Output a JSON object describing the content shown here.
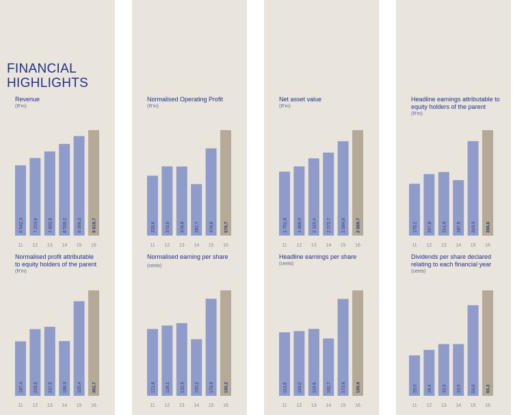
{
  "heading": [
    "FINANCIAL",
    "HIGHLIGHTS"
  ],
  "colors": {
    "panel": "#e9e5dd",
    "bar": "#8f9cc9",
    "highlight_bar": "#b4aa97",
    "title": "#1f2f8a",
    "value_label": "#2b3a7a",
    "tick_label": "#8a8a8a"
  },
  "chart_data": [
    {
      "type": "bar",
      "title": "Revenue",
      "unit": "(R'm)",
      "categories": [
        "11",
        "12",
        "13",
        "14",
        "15",
        "16"
      ],
      "values": [
        6542.3,
        7223.9,
        7832.9,
        8530.2,
        9266.3,
        9818.7
      ],
      "value_labels": [
        "6 542,3",
        "7 223,9",
        "7 832,9",
        "8 530,2",
        "9 266,3",
        "9 818,7"
      ],
      "highlight_index": 5
    },
    {
      "type": "bar",
      "title": "Normalised Operating Profit",
      "unit": "(R'm)",
      "categories": [
        "11",
        "12",
        "13",
        "14",
        "15",
        "16"
      ],
      "values": [
        328.6,
        379.9,
        378.9,
        282.7,
        478.6,
        578.7
      ],
      "value_labels": [
        "328,6",
        "379,9",
        "378,9",
        "282,7",
        "478,6",
        "578,7"
      ],
      "highlight_index": 5
    },
    {
      "type": "bar",
      "title": "Net asset value",
      "unit": "(R'm)",
      "categories": [
        "11",
        "12",
        "13",
        "14",
        "15",
        "16"
      ],
      "values": [
        1751.8,
        1896.0,
        2115.4,
        2272.7,
        2584.8,
        2888.7
      ],
      "value_labels": [
        "1 751,8",
        "1 896,0",
        "2 115,4",
        "2 272,7",
        "2 584,8",
        "2 888,7"
      ],
      "highlight_index": 5
    },
    {
      "type": "bar",
      "title": "Headline earnings attributable to equity holders of the parent",
      "unit": "(R'm)",
      "categories": [
        "11",
        "12",
        "13",
        "14",
        "15",
        "16"
      ],
      "values": [
        175.2,
        207.8,
        214.9,
        187.5,
        319.3,
        356.6
      ],
      "value_labels": [
        "175,2",
        "207,8",
        "214,9",
        "187,5",
        "319,3",
        "356,6"
      ],
      "highlight_index": 5
    },
    {
      "type": "bar",
      "title": "Normalised profit attributable to equity holders of the parent",
      "unit": "(R'm)",
      "categories": [
        "11",
        "12",
        "13",
        "14",
        "15",
        "16"
      ],
      "values": [
        187.4,
        229.5,
        237.5,
        188.3,
        325.4,
        362.7
      ],
      "value_labels": [
        "187,4",
        "229,5",
        "237,5",
        "188,3",
        "325,4",
        "362,7"
      ],
      "highlight_index": 5
    },
    {
      "type": "bar",
      "title": "Normalised earning per share",
      "unit": "(cents)",
      "categories": [
        "11",
        "12",
        "13",
        "14",
        "15",
        "16"
      ],
      "values": [
        121.8,
        128.1,
        132.5,
        103.2,
        176.9,
        192.2
      ],
      "value_labels": [
        "121,8",
        "128,1",
        "132,5",
        "103,2",
        "176,9",
        "192,2"
      ],
      "highlight_index": 5
    },
    {
      "type": "bar",
      "title": "Headline earnings per share",
      "unit": "(cents)",
      "categories": [
        "11",
        "12",
        "13",
        "14",
        "15",
        "16"
      ],
      "values": [
        113.8,
        116.0,
        119.9,
        102.7,
        173.6,
        188.9
      ],
      "value_labels": [
        "113,8",
        "116,0",
        "119,9",
        "102,7",
        "173,6",
        "188,9"
      ],
      "highlight_index": 5
    },
    {
      "type": "bar",
      "title": "Dividends per share declared relating to each financial year",
      "unit": "(cents)",
      "categories": [
        "11",
        "12",
        "13",
        "14",
        "15",
        "16"
      ],
      "values": [
        25.0,
        28.4,
        32.0,
        32.0,
        56.0,
        65.2
      ],
      "value_labels": [
        "25,0",
        "28,4",
        "32,0",
        "32,0",
        "56,0",
        "65,2"
      ],
      "highlight_index": 5
    }
  ]
}
